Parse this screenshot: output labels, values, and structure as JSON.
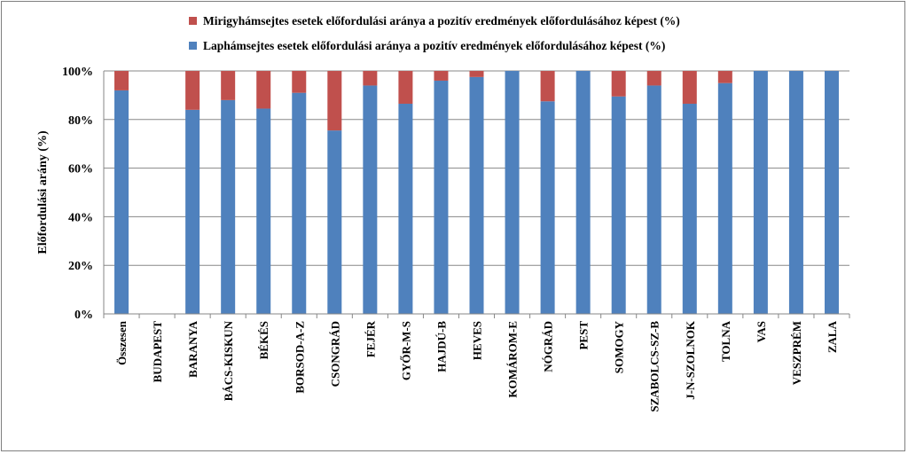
{
  "chart_data": {
    "type": "bar",
    "stacked": true,
    "ylabel": "Előfordulási arány (%)",
    "xlabel": "",
    "ylim": [
      0,
      100
    ],
    "yticks": [
      "0%",
      "20%",
      "40%",
      "60%",
      "80%",
      "100%"
    ],
    "grid": true,
    "legend_position": "top",
    "categories": [
      "Összesen",
      "BUDAPEST",
      "BARANYA",
      "BÁCS-KISKUN",
      "BÉKÉS",
      "BORSOD-A-Z",
      "CSONGRÁD",
      "FEJÉR",
      "GYŐR-M-S",
      "HAJDÚ-B",
      "HEVES",
      "KOMÁROM-E",
      "NÓGRÁD",
      "PEST",
      "SOMOGY",
      "SZABOLCS-SZ-B",
      "J-N-SZOLNOK",
      "TOLNA",
      "VAS",
      "VESZPRÉM",
      "ZALA"
    ],
    "series": [
      {
        "name": "Laphámsejtes esetek előfordulási aránya a pozitív eredmények előfordulásához képest (%)",
        "color": "#4f81bd",
        "values": [
          92,
          0,
          84,
          88,
          84.5,
          91,
          75.5,
          94,
          86.5,
          96,
          97.5,
          100,
          87.5,
          100,
          89.5,
          94,
          86.5,
          95,
          100,
          100,
          100
        ]
      },
      {
        "name": "Mirigyhámsejtes esetek előfordulási aránya a pozitív eredmények előfordulásához képest (%)",
        "color": "#c0504d",
        "values": [
          8,
          0,
          16,
          12,
          15.5,
          9,
          24.5,
          6,
          13.5,
          4,
          2.5,
          0,
          12.5,
          0,
          10.5,
          6,
          13.5,
          5,
          0,
          0,
          0
        ]
      }
    ],
    "legend_order": [
      1,
      0
    ]
  }
}
